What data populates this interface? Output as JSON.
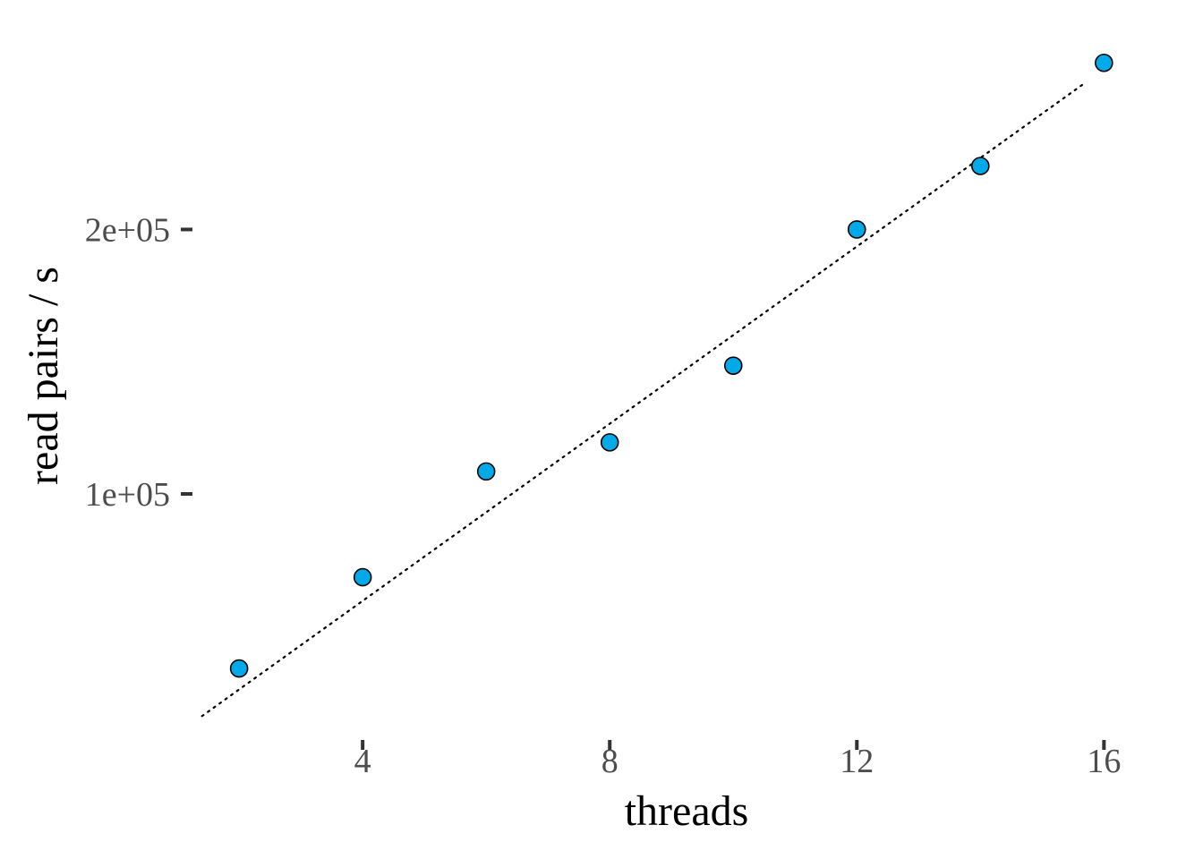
{
  "chart_data": {
    "type": "scatter",
    "title": "",
    "xlabel": "threads",
    "ylabel": "read pairs / s",
    "x_ticks": [
      4,
      8,
      12,
      16
    ],
    "y_ticks": [
      100000,
      200000
    ],
    "y_tick_labels": [
      "1e+05",
      "2e+05"
    ],
    "x_tick_labels": [
      "4",
      "8",
      "12",
      "16"
    ],
    "xlim": [
      1.1,
      16.85
    ],
    "ylim": [
      10000,
      280000
    ],
    "grid": false,
    "series": [
      {
        "x": [
          2,
          4,
          6,
          8,
          10,
          12,
          14,
          16
        ],
        "y": [
          34000,
          68500,
          108500,
          119500,
          148500,
          200000,
          224000,
          263000
        ],
        "color": "#00a9e8"
      }
    ],
    "reference_line": {
      "style": "dotted",
      "color": "#000000",
      "x": [
        1.4,
        15.65
      ],
      "y": [
        16000,
        254700
      ]
    }
  }
}
